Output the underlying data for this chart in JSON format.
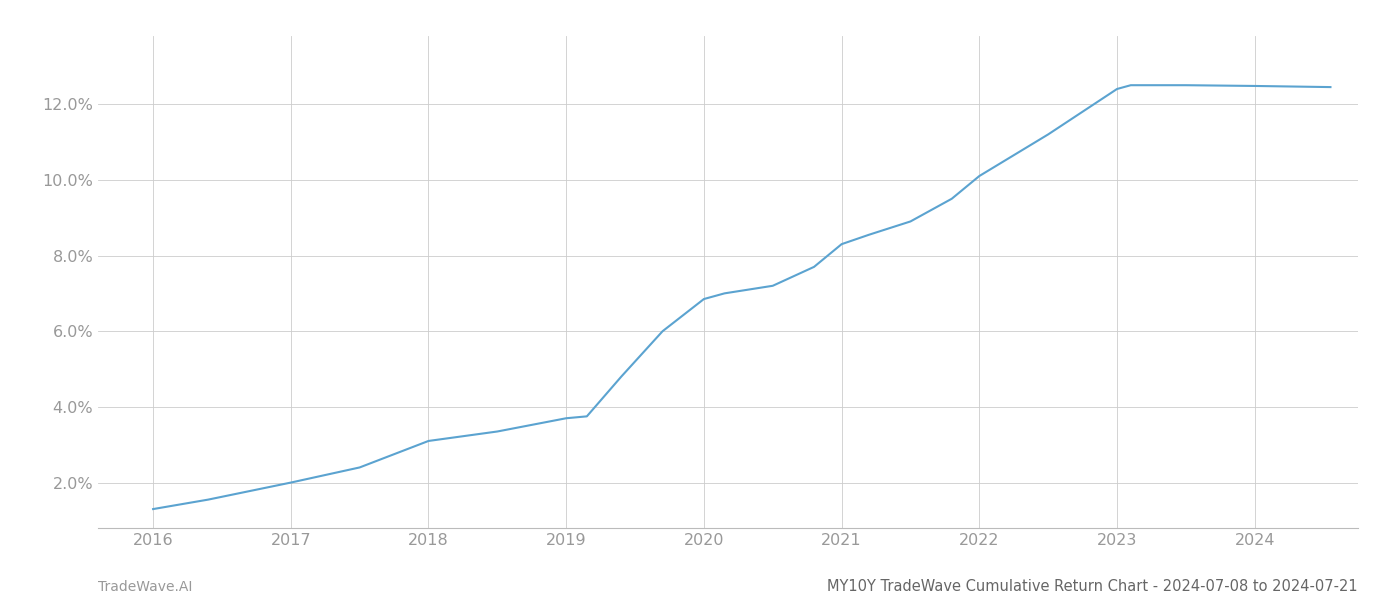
{
  "title": "MY10Y TradeWave Cumulative Return Chart - 2024-07-08 to 2024-07-21",
  "watermark_left": "TradeWave.AI",
  "x_years": [
    2016,
    2017,
    2018,
    2019,
    2020,
    2021,
    2022,
    2023,
    2024
  ],
  "data_points": [
    [
      2016.0,
      1.3
    ],
    [
      2016.4,
      1.55
    ],
    [
      2017.0,
      2.0
    ],
    [
      2017.5,
      2.4
    ],
    [
      2018.0,
      3.1
    ],
    [
      2018.5,
      3.35
    ],
    [
      2019.0,
      3.7
    ],
    [
      2019.15,
      3.75
    ],
    [
      2019.4,
      4.8
    ],
    [
      2019.7,
      6.0
    ],
    [
      2020.0,
      6.85
    ],
    [
      2020.15,
      7.0
    ],
    [
      2020.5,
      7.2
    ],
    [
      2020.8,
      7.7
    ],
    [
      2021.0,
      8.3
    ],
    [
      2021.2,
      8.55
    ],
    [
      2021.5,
      8.9
    ],
    [
      2021.8,
      9.5
    ],
    [
      2022.0,
      10.1
    ],
    [
      2022.5,
      11.2
    ],
    [
      2023.0,
      12.4
    ],
    [
      2023.1,
      12.5
    ],
    [
      2023.5,
      12.5
    ],
    [
      2024.0,
      12.48
    ],
    [
      2024.55,
      12.45
    ]
  ],
  "line_color": "#5ba3d0",
  "line_width": 1.5,
  "background_color": "#ffffff",
  "grid_color": "#cccccc",
  "tick_label_color": "#999999",
  "watermark_color": "#999999",
  "title_color": "#666666",
  "ylim": [
    0.8,
    13.8
  ],
  "xlim": [
    2015.6,
    2024.75
  ],
  "yticks": [
    2.0,
    4.0,
    6.0,
    8.0,
    10.0,
    12.0
  ],
  "title_fontsize": 10.5,
  "watermark_fontsize": 10,
  "tick_fontsize": 11.5
}
